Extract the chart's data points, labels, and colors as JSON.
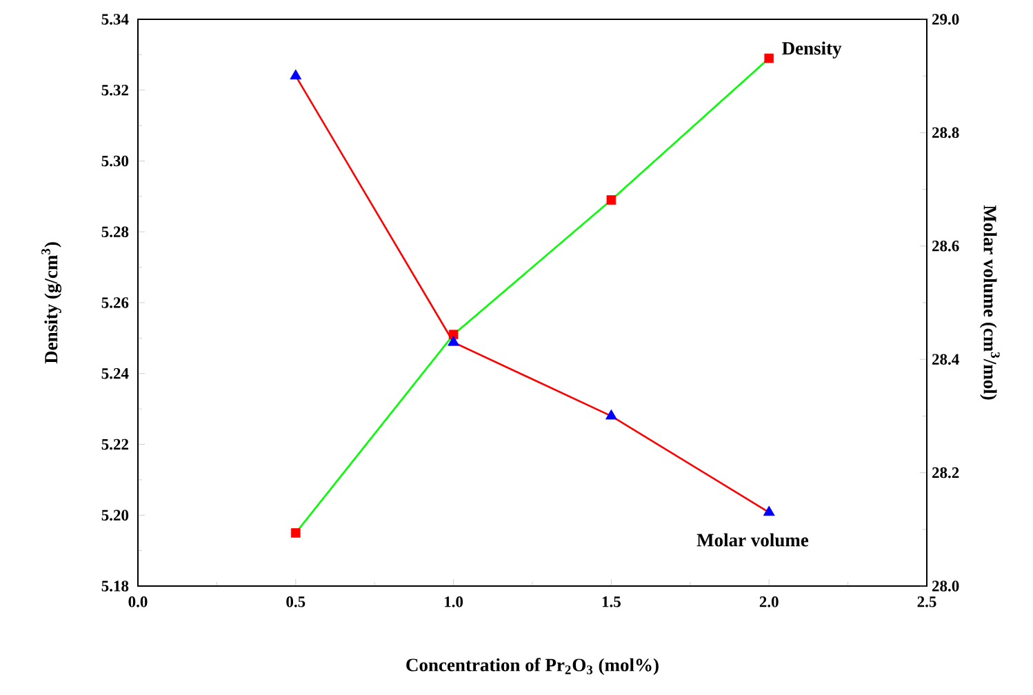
{
  "chart_data": {
    "type": "line",
    "xlabel": "Concentration of Pr$_{2}$O$_{3}$ (mol%)",
    "ylabel": "Density (g/cm$^{3}$)",
    "y2label": "Molar volume (cm$^{3}$/mol)",
    "x": [
      0.5,
      1.0,
      1.5,
      2.0
    ],
    "series": [
      {
        "name": "Density",
        "color": "#00ff00",
        "colors": [
          "#ff0000",
          "#ff0000",
          "#ff0000",
          "#ff0000"
        ],
        "marker": "square",
        "line_style": "solid",
        "values": [
          5.195,
          5.251,
          5.289,
          5.329
        ]
      },
      {
        "name": "Molar volume",
        "axis": "y2",
        "color": "#ff0000",
        "colors": [
          "#0000ff",
          "#0000ff",
          "#0000ff",
          "#0000ff"
        ],
        "marker": "triangle",
        "line_style": "solid",
        "values": [
          28.9,
          28.43,
          28.3,
          28.13
        ]
      }
    ],
    "xlim": [
      0,
      2.5
    ],
    "xticks": [
      {
        "value": 0,
        "label": "0.0"
      },
      0.5,
      {
        "value": 1,
        "label": "1.0"
      },
      1.5,
      {
        "value": 2,
        "label": "2.0"
      },
      2.5
    ],
    "ylim": [
      5.18,
      5.34
    ],
    "yticks": [
      5.18,
      {
        "value": 5.2,
        "label": "5.20"
      },
      5.22,
      5.24,
      5.26,
      5.28,
      {
        "value": 5.3,
        "label": "5.30"
      },
      5.32,
      5.34
    ],
    "y2lim": [
      28.0,
      29.0
    ],
    "y2ticks": [
      {
        "value": 28,
        "label": "28.0"
      },
      28.2,
      28.4,
      28.6,
      28.8,
      {
        "value": 29,
        "label": "29.0"
      }
    ],
    "grid": false,
    "legend": false
  }
}
